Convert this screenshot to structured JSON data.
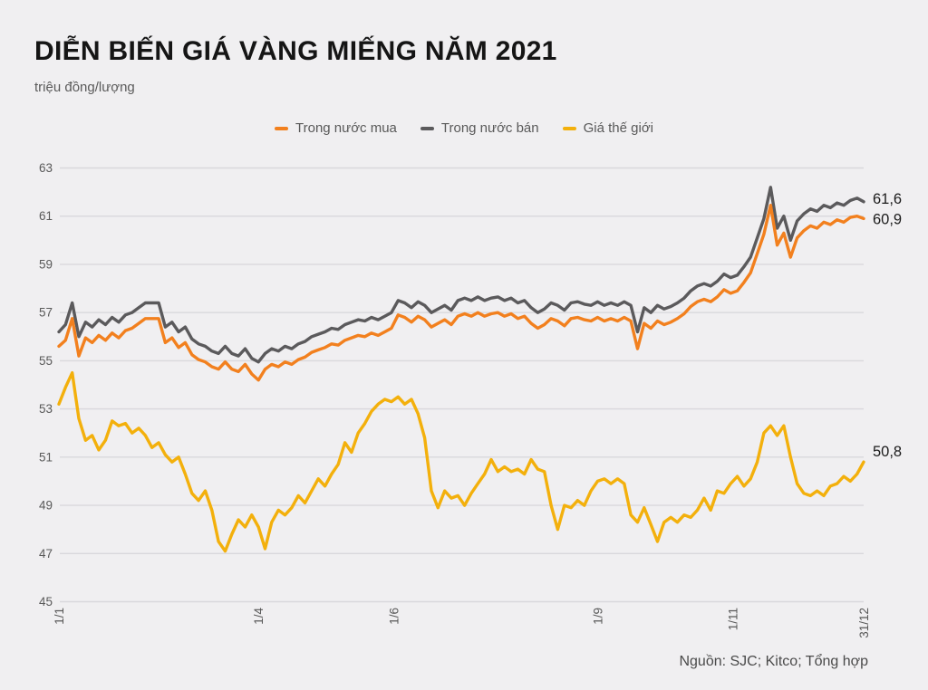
{
  "header": {
    "title": "DIỄN BIẾN GIÁ VÀNG MIẾNG NĂM 2021",
    "subtitle": "triệu đồng/lượng"
  },
  "source": "Nguồn: SJC; Kitco; Tổng hợp",
  "colors": {
    "background": "#F0EFF1",
    "grid": "#D9D8DC",
    "axis_text": "#595959",
    "end_label_text": "#1c1c1c"
  },
  "chart_data": {
    "type": "line",
    "title": "DIỄN BIẾN GIÁ VÀNG MIẾNG NĂM 2021",
    "unit_label": "triệu đồng/lượng",
    "x_unit": "day of year 2021, values sampled every 3 days",
    "x_step_days": 3,
    "x_domain_days": [
      0,
      363
    ],
    "ylim": [
      45,
      63
    ],
    "y_ticks": [
      45,
      47,
      49,
      51,
      53,
      55,
      57,
      59,
      61,
      63
    ],
    "x_ticks": [
      {
        "day": 0,
        "label": "1/1"
      },
      {
        "day": 90,
        "label": "1/4"
      },
      {
        "day": 151,
        "label": "1/6"
      },
      {
        "day": 243,
        "label": "1/9"
      },
      {
        "day": 304,
        "label": "1/11"
      },
      {
        "day": 363,
        "label": "31/12"
      }
    ],
    "grid": "horizontal",
    "legend_position": "top",
    "draw_order": [
      1,
      0,
      2
    ],
    "series": [
      {
        "name": "Trong nước mua",
        "color": "#F2801E",
        "end_label": "60,9",
        "end_label_dy": 6,
        "values": [
          55.6,
          55.85,
          56.75,
          55.2,
          55.95,
          55.75,
          56.05,
          55.85,
          56.15,
          55.95,
          56.25,
          56.35,
          56.55,
          56.75,
          56.75,
          56.75,
          55.75,
          55.95,
          55.55,
          55.75,
          55.25,
          55.05,
          54.95,
          54.75,
          54.65,
          54.95,
          54.65,
          54.55,
          54.85,
          54.45,
          54.2,
          54.65,
          54.85,
          54.75,
          54.95,
          54.85,
          55.05,
          55.15,
          55.35,
          55.45,
          55.55,
          55.7,
          55.65,
          55.85,
          55.95,
          56.05,
          56.0,
          56.15,
          56.05,
          56.2,
          56.35,
          56.9,
          56.8,
          56.6,
          56.85,
          56.7,
          56.4,
          56.55,
          56.7,
          56.5,
          56.85,
          56.95,
          56.85,
          57.0,
          56.85,
          56.95,
          57.0,
          56.85,
          56.95,
          56.75,
          56.85,
          56.55,
          56.35,
          56.5,
          56.75,
          56.65,
          56.45,
          56.75,
          56.8,
          56.7,
          56.65,
          56.8,
          56.65,
          56.75,
          56.65,
          56.8,
          56.65,
          55.5,
          56.55,
          56.35,
          56.65,
          56.5,
          56.6,
          56.75,
          56.95,
          57.25,
          57.45,
          57.55,
          57.45,
          57.65,
          57.95,
          57.8,
          57.9,
          58.25,
          58.65,
          59.45,
          60.25,
          61.45,
          59.8,
          60.3,
          59.3,
          60.1,
          60.4,
          60.6,
          60.5,
          60.75,
          60.65,
          60.85,
          60.75,
          60.95,
          61.0,
          60.9
        ]
      },
      {
        "name": "Trong nước bán",
        "color": "#5B5A5C",
        "end_label": "61,6",
        "end_label_dy": 2,
        "values": [
          56.2,
          56.5,
          57.4,
          56.0,
          56.6,
          56.4,
          56.7,
          56.5,
          56.8,
          56.6,
          56.9,
          57.0,
          57.2,
          57.4,
          57.4,
          57.4,
          56.4,
          56.6,
          56.2,
          56.4,
          55.9,
          55.7,
          55.6,
          55.4,
          55.3,
          55.6,
          55.3,
          55.2,
          55.5,
          55.1,
          54.95,
          55.3,
          55.5,
          55.4,
          55.6,
          55.5,
          55.7,
          55.8,
          56.0,
          56.1,
          56.2,
          56.35,
          56.3,
          56.5,
          56.6,
          56.7,
          56.65,
          56.8,
          56.7,
          56.85,
          57.0,
          57.5,
          57.4,
          57.2,
          57.45,
          57.3,
          57.0,
          57.15,
          57.3,
          57.1,
          57.5,
          57.6,
          57.5,
          57.65,
          57.5,
          57.6,
          57.65,
          57.5,
          57.6,
          57.4,
          57.5,
          57.2,
          57.0,
          57.15,
          57.4,
          57.3,
          57.1,
          57.4,
          57.45,
          57.35,
          57.3,
          57.45,
          57.3,
          57.4,
          57.3,
          57.45,
          57.3,
          56.2,
          57.2,
          57.0,
          57.3,
          57.15,
          57.25,
          57.4,
          57.6,
          57.9,
          58.1,
          58.2,
          58.1,
          58.3,
          58.6,
          58.45,
          58.55,
          58.9,
          59.3,
          60.1,
          60.9,
          62.2,
          60.5,
          61.0,
          60.0,
          60.8,
          61.1,
          61.3,
          61.2,
          61.45,
          61.35,
          61.55,
          61.45,
          61.65,
          61.75,
          61.6
        ]
      },
      {
        "name": "Giá thế giới",
        "color": "#F3B00C",
        "end_label": "50,8",
        "end_label_dy": -6,
        "values": [
          53.2,
          53.9,
          54.5,
          52.6,
          51.7,
          51.9,
          51.3,
          51.7,
          52.5,
          52.3,
          52.4,
          52.0,
          52.2,
          51.9,
          51.4,
          51.6,
          51.1,
          50.8,
          51.0,
          50.3,
          49.5,
          49.2,
          49.6,
          48.8,
          47.5,
          47.1,
          47.8,
          48.4,
          48.1,
          48.6,
          48.1,
          47.2,
          48.3,
          48.8,
          48.6,
          48.9,
          49.4,
          49.1,
          49.6,
          50.1,
          49.8,
          50.3,
          50.7,
          51.6,
          51.2,
          52.0,
          52.4,
          52.9,
          53.2,
          53.4,
          53.3,
          53.5,
          53.2,
          53.4,
          52.8,
          51.8,
          49.6,
          48.9,
          49.6,
          49.3,
          49.4,
          49.0,
          49.5,
          49.9,
          50.3,
          50.9,
          50.4,
          50.6,
          50.4,
          50.5,
          50.3,
          50.9,
          50.5,
          50.4,
          49.0,
          48.0,
          49.0,
          48.9,
          49.2,
          49.0,
          49.6,
          50.0,
          50.1,
          49.9,
          50.1,
          49.9,
          48.6,
          48.3,
          48.9,
          48.2,
          47.5,
          48.3,
          48.5,
          48.3,
          48.6,
          48.5,
          48.8,
          49.3,
          48.8,
          49.6,
          49.5,
          49.9,
          50.2,
          49.8,
          50.1,
          50.8,
          52.0,
          52.3,
          51.9,
          52.3,
          51.0,
          49.9,
          49.5,
          49.4,
          49.6,
          49.4,
          49.8,
          49.9,
          50.2,
          50.0,
          50.3,
          50.8
        ]
      }
    ]
  }
}
